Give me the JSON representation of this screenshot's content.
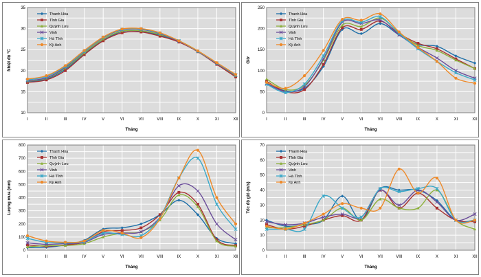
{
  "chart_data": [
    {
      "type": "line",
      "title": "",
      "xlabel": "Tháng",
      "ylabel": "Nhiệt độ °C",
      "ylim": [
        10,
        35
      ],
      "yticks": [
        10,
        15,
        20,
        25,
        30,
        35
      ],
      "categories": [
        "I",
        "II",
        "III",
        "IV",
        "V",
        "VI",
        "VII",
        "VIII",
        "IX",
        "X",
        "XI",
        "XII"
      ],
      "legend_position": "top-left",
      "grid": true,
      "series": [
        {
          "name": "Thanh Hóa",
          "color": "#1f6fa8",
          "marker": "diamond",
          "values": [
            17.3,
            18.0,
            20.3,
            24.0,
            27.2,
            29.3,
            29.4,
            28.4,
            27.0,
            24.6,
            21.6,
            18.6
          ]
        },
        {
          "name": "Tĩnh Gia",
          "color": "#a83232",
          "marker": "square",
          "values": [
            17.2,
            17.8,
            20.0,
            23.8,
            27.1,
            29.0,
            29.2,
            28.2,
            26.8,
            24.5,
            21.5,
            18.5
          ]
        },
        {
          "name": "Quỳnh Lưu",
          "color": "#8db03c",
          "marker": "triangle",
          "values": [
            17.5,
            18.2,
            20.6,
            24.2,
            27.5,
            29.4,
            29.5,
            28.6,
            27.1,
            24.7,
            21.7,
            18.8
          ]
        },
        {
          "name": "Vinh",
          "color": "#6b4d9a",
          "marker": "x",
          "values": [
            17.6,
            18.3,
            20.8,
            24.5,
            27.8,
            29.7,
            29.8,
            28.8,
            27.0,
            24.6,
            21.7,
            18.9
          ]
        },
        {
          "name": "Hà Tĩnh",
          "color": "#3aa8c8",
          "marker": "star",
          "values": [
            17.8,
            18.6,
            21.0,
            24.6,
            27.9,
            29.8,
            29.9,
            28.9,
            27.1,
            24.6,
            21.8,
            19.0
          ]
        },
        {
          "name": "Kỳ Anh",
          "color": "#ee8a2a",
          "marker": "circle",
          "values": [
            18.0,
            18.8,
            21.2,
            24.8,
            28.0,
            29.9,
            30.0,
            29.0,
            27.1,
            24.7,
            21.9,
            19.1
          ]
        }
      ]
    },
    {
      "type": "line",
      "title": "",
      "xlabel": "Tháng",
      "ylabel": "Giờ",
      "ylim": [
        0,
        250
      ],
      "yticks": [
        0,
        50,
        100,
        150,
        200,
        250
      ],
      "categories": [
        "I",
        "II",
        "III",
        "IV",
        "V",
        "VI",
        "VII",
        "VIII",
        "IX",
        "X",
        "XI",
        "XII"
      ],
      "legend_position": "top-left",
      "grid": true,
      "series": [
        {
          "name": "Thanh Hóa",
          "color": "#1f6fa8",
          "marker": "diamond",
          "values": [
            72,
            52,
            58,
            110,
            198,
            188,
            212,
            185,
            162,
            158,
            135,
            118
          ]
        },
        {
          "name": "Tĩnh Gia",
          "color": "#a83232",
          "marker": "square",
          "values": [
            75,
            50,
            55,
            115,
            202,
            198,
            218,
            188,
            165,
            152,
            128,
            105
          ]
        },
        {
          "name": "Quỳnh Lưu",
          "color": "#8db03c",
          "marker": "triangle",
          "values": [
            80,
            55,
            65,
            125,
            208,
            205,
            225,
            190,
            160,
            148,
            125,
            105
          ]
        },
        {
          "name": "Vinh",
          "color": "#6b4d9a",
          "marker": "x",
          "values": [
            70,
            50,
            62,
            128,
            215,
            212,
            220,
            185,
            155,
            130,
            100,
            82
          ]
        },
        {
          "name": "Hà Tĩnh",
          "color": "#3aa8c8",
          "marker": "star",
          "values": [
            68,
            48,
            68,
            135,
            218,
            215,
            228,
            188,
            152,
            122,
            95,
            78
          ]
        },
        {
          "name": "Kỳ Anh",
          "color": "#ee8a2a",
          "marker": "circle",
          "values": [
            72,
            58,
            88,
            148,
            222,
            220,
            235,
            192,
            155,
            122,
            82,
            70
          ]
        }
      ]
    },
    {
      "type": "line",
      "title": "",
      "xlabel": "Tháng",
      "ylabel": "Lượng mưa (mm)",
      "ylim": [
        0,
        800
      ],
      "yticks": [
        0,
        100,
        200,
        300,
        400,
        500,
        600,
        700,
        800
      ],
      "categories": [
        "I",
        "II",
        "III",
        "IV",
        "V",
        "VI",
        "VII",
        "VIII",
        "IX",
        "X",
        "XI",
        "XII"
      ],
      "legend_position": "top-left",
      "grid": true,
      "series": [
        {
          "name": "Thanh Hóa",
          "color": "#1f6fa8",
          "marker": "diamond",
          "values": [
            20,
            22,
            40,
            75,
            160,
            170,
            200,
            270,
            380,
            270,
            90,
            50
          ]
        },
        {
          "name": "Tĩnh Gia",
          "color": "#a83232",
          "marker": "square",
          "values": [
            40,
            30,
            40,
            60,
            140,
            150,
            170,
            270,
            440,
            350,
            80,
            35
          ]
        },
        {
          "name": "Quỳnh Lưu",
          "color": "#8db03c",
          "marker": "triangle",
          "values": [
            25,
            35,
            35,
            50,
            100,
            130,
            140,
            230,
            420,
            330,
            70,
            30
          ]
        },
        {
          "name": "Vinh",
          "color": "#6b4d9a",
          "marker": "x",
          "values": [
            55,
            45,
            50,
            60,
            120,
            130,
            140,
            250,
            490,
            450,
            200,
            80
          ]
        },
        {
          "name": "Hà Tĩnh",
          "color": "#3aa8c8",
          "marker": "star",
          "values": [
            90,
            60,
            55,
            65,
            130,
            120,
            110,
            250,
            550,
            700,
            350,
            160
          ]
        },
        {
          "name": "Kỳ Anh",
          "color": "#ee8a2a",
          "marker": "circle",
          "values": [
            110,
            70,
            60,
            70,
            150,
            130,
            95,
            240,
            550,
            760,
            400,
            200
          ]
        }
      ]
    },
    {
      "type": "line",
      "title": "",
      "xlabel": "Tháng",
      "ylabel": "Tốc độ gió (m/s)",
      "ylim": [
        0,
        70
      ],
      "yticks": [
        0,
        10,
        20,
        30,
        40,
        50,
        60,
        70
      ],
      "categories": [
        "I",
        "II",
        "III",
        "IV",
        "V",
        "VI",
        "VII",
        "VIII",
        "IX",
        "X",
        "XI",
        "XII"
      ],
      "legend_position": "top-left",
      "grid": true,
      "series": [
        {
          "name": "Thanh Hóa",
          "color": "#1f6fa8",
          "marker": "diamond",
          "values": [
            20,
            16,
            17,
            20,
            36,
            20,
            41,
            40,
            40,
            33,
            20,
            20
          ]
        },
        {
          "name": "Tĩnh Gia",
          "color": "#a83232",
          "marker": "square",
          "values": [
            17,
            14,
            16,
            20,
            23,
            20,
            40,
            28,
            38,
            28,
            20,
            19
          ]
        },
        {
          "name": "Quỳnh Lưu",
          "color": "#8db03c",
          "marker": "triangle",
          "values": [
            15,
            15,
            17,
            20,
            28,
            20,
            34,
            28,
            28,
            40,
            20,
            14
          ]
        },
        {
          "name": "Vinh",
          "color": "#6b4d9a",
          "marker": "x",
          "values": [
            19,
            17,
            18,
            22,
            24,
            22,
            40,
            30,
            40,
            32,
            20,
            24
          ]
        },
        {
          "name": "Hà Tĩnh",
          "color": "#3aa8c8",
          "marker": "star",
          "values": [
            14,
            14,
            14,
            36,
            28,
            22,
            41,
            39,
            41,
            41,
            20,
            20
          ]
        },
        {
          "name": "Kỳ Anh",
          "color": "#ee8a2a",
          "marker": "circle",
          "values": [
            16,
            14,
            18,
            24,
            31,
            28,
            28,
            54,
            38,
            48,
            20,
            20
          ]
        }
      ]
    }
  ]
}
